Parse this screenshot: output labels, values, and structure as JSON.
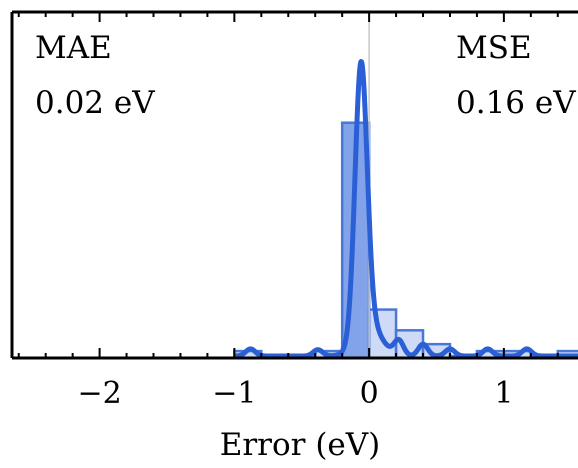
{
  "chart_data": {
    "type": "bar",
    "xlabel": "Error (eV)",
    "ylabel": "",
    "xlim": [
      -2.65,
      1.55
    ],
    "ylim": [
      0,
      1.0
    ],
    "x_ticks": [
      -2,
      -1,
      0,
      1
    ],
    "x_tick_labels": [
      "−2",
      "−1",
      "0",
      "1"
    ],
    "grid": false,
    "annotations": [
      {
        "label": "MAE",
        "value": "0.02 eV"
      },
      {
        "label": "MSE",
        "value": "0.16 eV"
      }
    ],
    "bin_width": 0.2,
    "histogram": [
      {
        "start": -1.0,
        "end": -0.8,
        "value": 0.02
      },
      {
        "start": -0.8,
        "end": -0.6,
        "value": 0.0
      },
      {
        "start": -0.6,
        "end": -0.4,
        "value": 0.0
      },
      {
        "start": -0.4,
        "end": -0.2,
        "value": 0.02
      },
      {
        "start": -0.2,
        "end": 0.0,
        "value": 0.68
      },
      {
        "start": 0.0,
        "end": 0.2,
        "value": 0.14
      },
      {
        "start": 0.2,
        "end": 0.4,
        "value": 0.08
      },
      {
        "start": 0.4,
        "end": 0.6,
        "value": 0.04
      },
      {
        "start": 0.6,
        "end": 0.8,
        "value": 0.0
      },
      {
        "start": 0.8,
        "end": 1.0,
        "value": 0.02
      },
      {
        "start": 1.0,
        "end": 1.2,
        "value": 0.02
      },
      {
        "start": 1.2,
        "end": 1.4,
        "value": 0.0
      },
      {
        "start": 1.4,
        "end": 1.6,
        "value": 0.02
      }
    ],
    "density_components": [
      {
        "mean": -0.06,
        "sd": 0.045,
        "weight": 0.088
      },
      {
        "mean": 0.0,
        "sd": 0.09,
        "weight": 0.02
      },
      {
        "mean": 0.22,
        "sd": 0.035,
        "weight": 0.0038
      },
      {
        "mean": 0.4,
        "sd": 0.035,
        "weight": 0.003
      },
      {
        "mean": 0.6,
        "sd": 0.035,
        "weight": 0.0018
      },
      {
        "mean": -0.88,
        "sd": 0.035,
        "weight": 0.0018
      },
      {
        "mean": -0.38,
        "sd": 0.035,
        "weight": 0.0016
      },
      {
        "mean": 0.88,
        "sd": 0.035,
        "weight": 0.0018
      },
      {
        "mean": 1.17,
        "sd": 0.035,
        "weight": 0.0018
      }
    ],
    "colors": {
      "bar_fill": "#7b9ee8",
      "bar_fill_light": "#adc2f0",
      "bar_stroke": "#4a78d6",
      "curve": "#2a5fd6",
      "zero_line": "#c8c8c8",
      "frame": "#000000"
    }
  }
}
